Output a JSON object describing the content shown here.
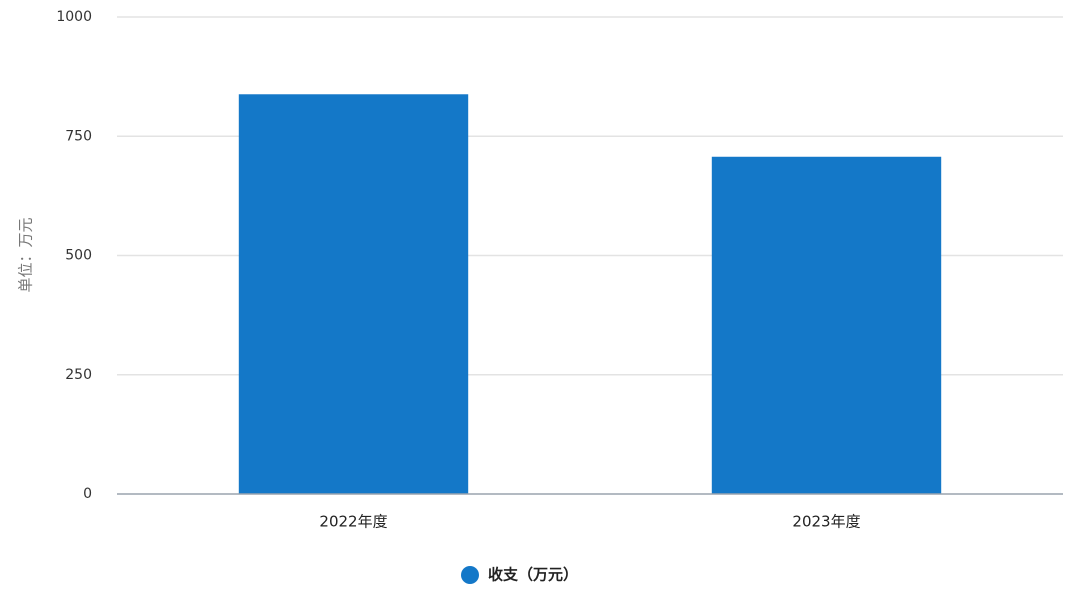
{
  "chart_data": {
    "type": "bar",
    "title": "",
    "xlabel": "",
    "ylabel": "单位：万元",
    "categories": [
      "2022年度",
      "2023年度"
    ],
    "series": [
      {
        "name": "收支（万元）",
        "values": [
          838,
          707
        ],
        "color": "#1478C8"
      }
    ],
    "ylim": [
      0,
      1000
    ],
    "yticks": [
      0,
      250,
      500,
      750,
      1000
    ],
    "grid": true,
    "legend_position": "bottom"
  }
}
